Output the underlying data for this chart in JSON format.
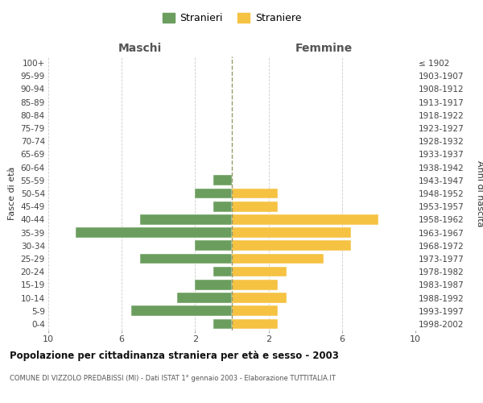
{
  "age_groups": [
    "0-4",
    "5-9",
    "10-14",
    "15-19",
    "20-24",
    "25-29",
    "30-34",
    "35-39",
    "40-44",
    "45-49",
    "50-54",
    "55-59",
    "60-64",
    "65-69",
    "70-74",
    "75-79",
    "80-84",
    "85-89",
    "90-94",
    "95-99",
    "100+"
  ],
  "birth_years": [
    "1998-2002",
    "1993-1997",
    "1988-1992",
    "1983-1987",
    "1978-1982",
    "1973-1977",
    "1968-1972",
    "1963-1967",
    "1958-1962",
    "1953-1957",
    "1948-1952",
    "1943-1947",
    "1938-1942",
    "1933-1937",
    "1928-1932",
    "1923-1927",
    "1918-1922",
    "1913-1917",
    "1908-1912",
    "1903-1907",
    "≤ 1902"
  ],
  "maschi": [
    1,
    5.5,
    3,
    2,
    1,
    5,
    2,
    8.5,
    5,
    1,
    2,
    1,
    0,
    0,
    0,
    0,
    0,
    0,
    0,
    0,
    0
  ],
  "femmine": [
    2.5,
    2.5,
    3,
    2.5,
    3,
    5,
    6.5,
    6.5,
    8,
    2.5,
    2.5,
    0,
    0,
    0,
    0,
    0,
    0,
    0,
    0,
    0,
    0
  ],
  "maschi_color": "#6b9e5e",
  "femmine_color": "#f5c242",
  "center_line_color": "#999966",
  "background_color": "#ffffff",
  "grid_color": "#cccccc",
  "title": "Popolazione per cittadinanza straniera per età e sesso - 2003",
  "subtitle": "COMUNE DI VIZZOLO PREDABISSI (MI) - Dati ISTAT 1° gennaio 2003 - Elaborazione TUTTITALIA.IT",
  "legend_stranieri": "Stranieri",
  "legend_straniere": "Straniere",
  "xlabel_left": "Maschi",
  "xlabel_right": "Femmine",
  "ylabel_left": "Fasce di età",
  "ylabel_right": "Anni di nascita",
  "xlim": 10,
  "shown_xtick_positions": [
    -10,
    -6,
    -2,
    2,
    6,
    10
  ],
  "shown_xtick_labels": [
    "10",
    "6",
    "2",
    "2",
    "6",
    "10"
  ]
}
